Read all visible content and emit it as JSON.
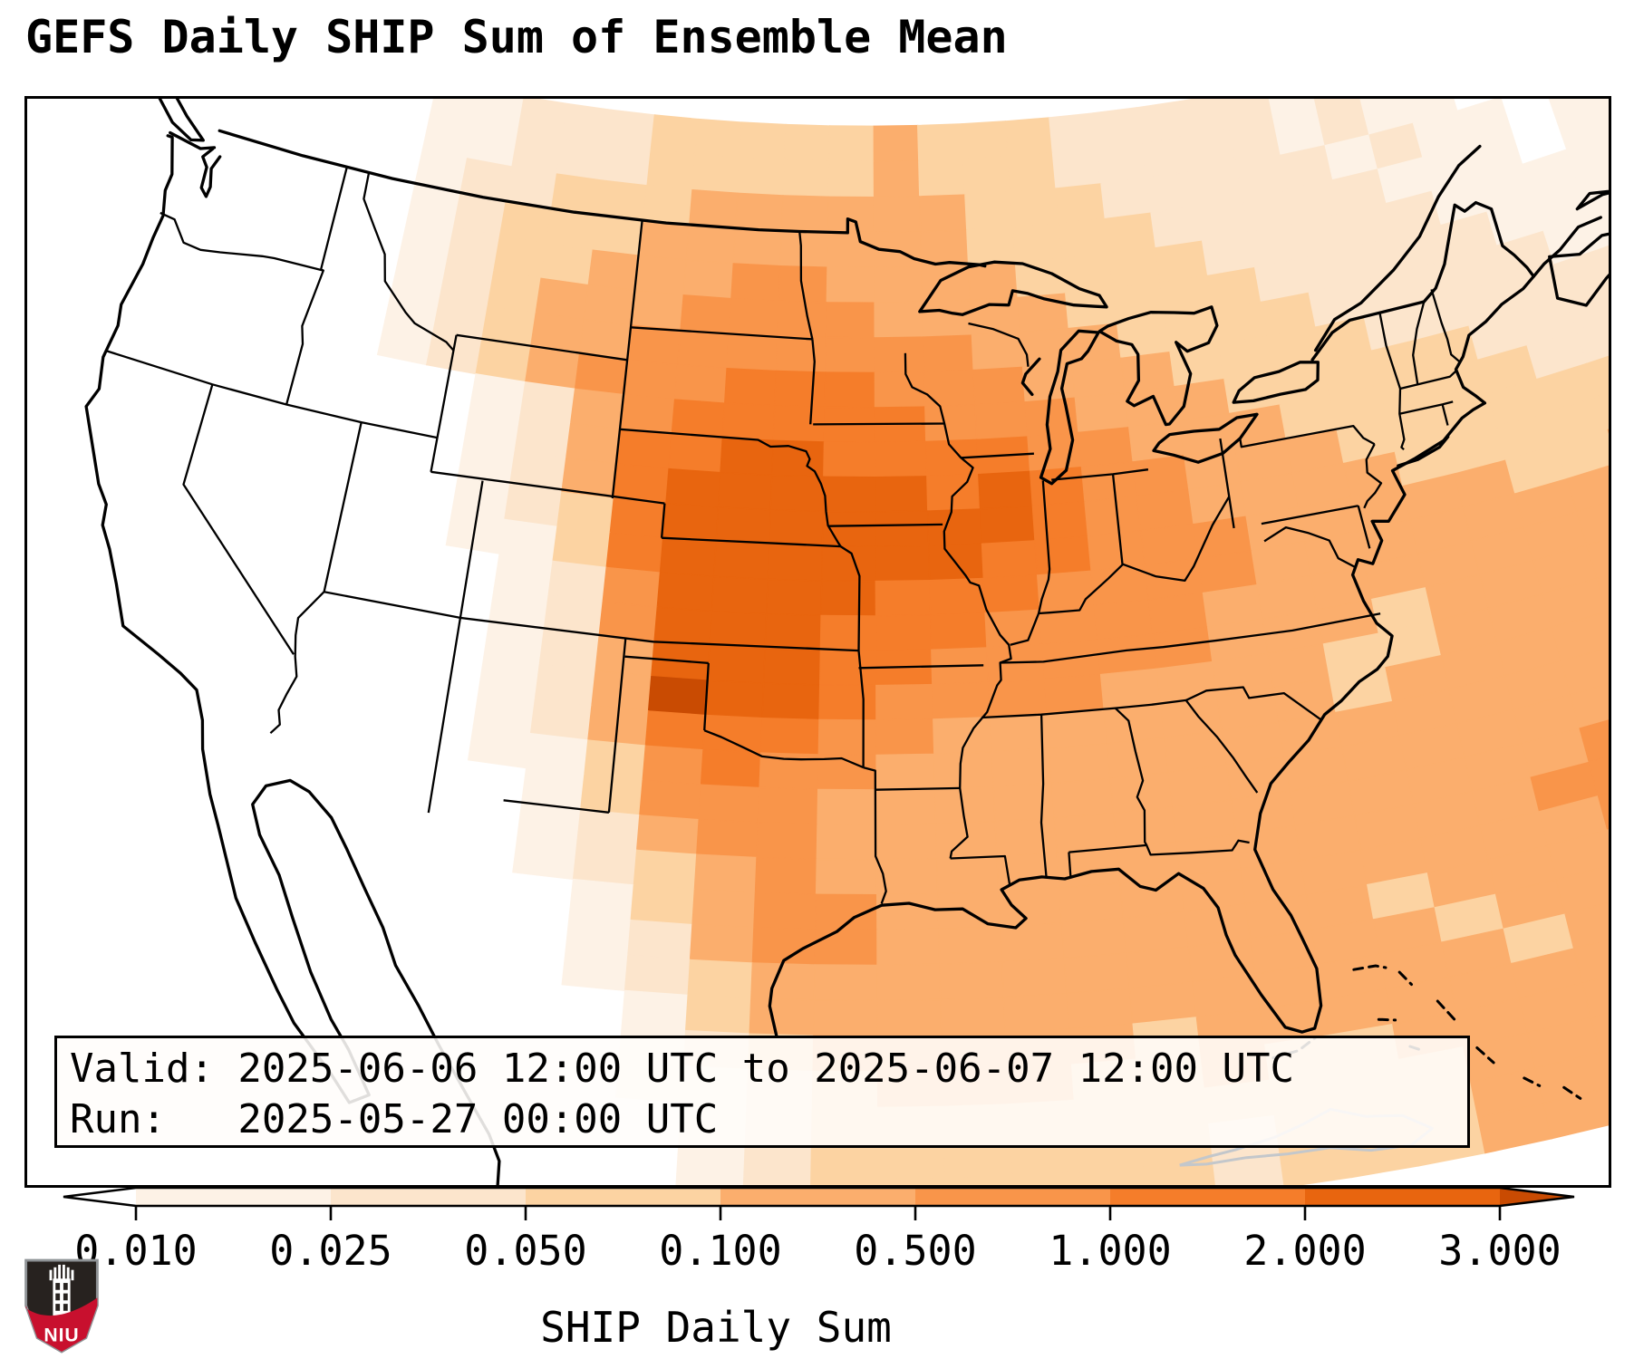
{
  "title": "GEFS Daily SHIP Sum of Ensemble Mean",
  "info_box": {
    "lines": [
      "Valid: 2025-06-06 12:00 UTC to 2025-06-07 12:00 UTC",
      "Run:   2025-05-27 00:00 UTC"
    ]
  },
  "logo": {
    "label": "NIU",
    "shield_dark": "#27221f",
    "shield_red": "#c8102e",
    "border": "#8f9396"
  },
  "chart_data": {
    "type": "heatmap",
    "title": "GEFS Daily SHIP Sum of Ensemble Mean",
    "colorbar_label": "SHIP Daily Sum",
    "valid_window": "2025-06-06 12:00 UTC to 2025-06-07 12:00 UTC",
    "run": "2025-05-27 00:00 UTC",
    "boundaries": [
      0.01,
      0.025,
      0.05,
      0.1,
      0.5,
      1.0,
      2.0,
      3.0
    ],
    "tick_labels": [
      "0.010",
      "0.025",
      "0.050",
      "0.100",
      "0.500",
      "1.000",
      "2.000",
      "3.000"
    ],
    "extend": "both",
    "palette": {
      "under": "#ffffff",
      "levels": [
        "#fdf2e6",
        "#fce5cc",
        "#fcd3a2",
        "#fbae6d",
        "#f9954a",
        "#f57d2a",
        "#e8650f"
      ],
      "over": "#c94b02"
    },
    "region": "CONUS (GEFS ensemble mean, daily SHIP parameter sum)",
    "grid": {
      "comment": "Coarse recreation of the shaded field. Each char = color level: 0 under(white), 1-7 palette levels, 8 over. Cells are 2deg lon x 1deg lat, starting lon -126 (west edge), lat 52 (top), stepping +2 lon per char and -1 lat per row.",
      "lon_start": -126,
      "lon_step": 2,
      "lat_start": 52,
      "lat_step": -1,
      "rows": [
        [
          "000000",
          "11222",
          "33333",
          "43332",
          "22221",
          "21101",
          "01"
        ],
        [
          "000000",
          "11222",
          "33333",
          "43332",
          "22221",
          "21101",
          "01"
        ],
        [
          "000000",
          "12233",
          "34444",
          "44333",
          "22222",
          "12110",
          "11"
        ],
        [
          "000000",
          "12333",
          "44444",
          "44333",
          "32222",
          "21110",
          "11"
        ],
        [
          "000000",
          "12334",
          "44554",
          "44433",
          "33222",
          "22111",
          "11"
        ],
        [
          "000000",
          "12344",
          "45555",
          "44443",
          "33322",
          "22211",
          "11"
        ],
        [
          "000000",
          "12344",
          "55555",
          "55444",
          "33332",
          "22221",
          "11"
        ],
        [
          "000000",
          "12345",
          "55666",
          "55544",
          "43333",
          "22222",
          "22"
        ],
        [
          "00000000",
          "12456",
          "66665",
          "55444",
          "33333",
          "22222"
        ],
        [
          "00000000",
          "12466",
          "77666",
          "65544",
          "43333",
          "32222"
        ],
        [
          "00000000",
          "12467",
          "77776",
          "76554",
          "44333",
          "33333"
        ],
        [
          "00000000",
          "12367",
          "77777",
          "76554",
          "44433",
          "33333"
        ],
        [
          "00000000",
          "11367",
          "77777",
          "66555",
          "44444",
          "33444"
        ],
        [
          "000000000",
          "12577",
          "77666",
          "55554",
          "44444",
          "4444"
        ],
        [
          "000000000",
          "12577",
          "76665",
          "55544",
          "44444",
          "4444"
        ],
        [
          "000000000",
          "12477",
          "76655",
          "55544",
          "43444",
          "4444"
        ],
        [
          "000000000",
          "12487",
          "76555",
          "54444",
          "33444",
          "4444"
        ],
        [
          "000000000",
          "12466",
          "65544",
          "44444",
          "34444",
          "4444"
        ],
        [
          "000000000",
          "11356",
          "55444",
          "44444",
          "44444",
          "4444"
        ],
        [
          "0000000000",
          "13555",
          "44444",
          "44444",
          "44444",
          "444"
        ],
        [
          "0000000000",
          "12455",
          "44444",
          "44444",
          "44454",
          "444"
        ],
        [
          "0000000000",
          "12345",
          "44444",
          "44444",
          "44554",
          "444"
        ],
        [
          "00000000000",
          "13455",
          "44444",
          "44444",
          "44554",
          "44"
        ],
        [
          "00000000000",
          "12455",
          "44444",
          "44434",
          "44455",
          "44"
        ],
        [
          "00000000000",
          "12344",
          "44444",
          "44443",
          "44445",
          "54"
        ],
        [
          "000000000000",
          "13444",
          "44444",
          "44443",
          "44445",
          "5"
        ],
        [
          "000000000000",
          "12344",
          "44434",
          "44444",
          "43444",
          "5"
        ],
        [
          "000000000000",
          "11234",
          "44334",
          "33444",
          "44444",
          "4"
        ],
        [
          "0000000000000",
          "12333",
          "33333",
          "33444",
          "44444"
        ],
        [
          "0000000000000",
          "12333",
          "33323",
          "33444",
          "44444"
        ],
        [
          "0000000000000",
          "12333",
          "33323",
          "33444",
          "44444"
        ]
      ]
    }
  }
}
